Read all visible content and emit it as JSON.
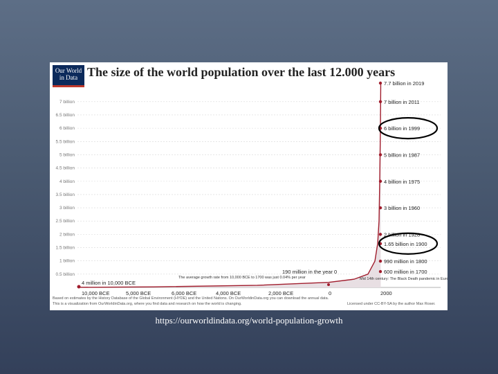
{
  "chart_data": {
    "type": "area",
    "title": "The size of the world population over the last 12.000 years",
    "logo_text": "Our World in Data",
    "y_ticks": [
      "7 billion",
      "6.5 billion",
      "6 billion",
      "5.5 billion",
      "5 billion",
      "4.5 billion",
      "4 billion",
      "3.5 billion",
      "3 billion",
      "2.5 billion",
      "2 billion",
      "1.5 billion",
      "1 billion",
      "0.5 billion"
    ],
    "x_ticks": [
      "10,000 BCE",
      "5,000 BCE",
      "6,000 BCE",
      "4,000 BCE",
      "2,000 BCE",
      "0",
      "2000"
    ],
    "ylim": [
      0,
      7.7
    ],
    "points": [
      {
        "label": "7.7 billion in 2019",
        "value": 7.7
      },
      {
        "label": "7 billion in 2011",
        "value": 7.0
      },
      {
        "label": "6 billion in 1999",
        "value": 6.0
      },
      {
        "label": "5 billion in 1987",
        "value": 5.0
      },
      {
        "label": "4 billion in 1975",
        "value": 4.0
      },
      {
        "label": "3 billion in 1960",
        "value": 3.0
      },
      {
        "label": "2 billion in 1928",
        "value": 2.0
      },
      {
        "label": "1.65 billion in 1900",
        "value": 1.65
      },
      {
        "label": "990 million in 1800",
        "value": 0.99
      },
      {
        "label": "600 million in 1700",
        "value": 0.6
      }
    ],
    "annotations": {
      "start": "4 million in 10,000 BCE",
      "year0": "190 million in the year 0",
      "growth_rate": "The average growth rate from 10,000 BCE to 1700 was just 0.04% per year",
      "black_death": "Mid 14th century: The Black Death pandemic in Europe kills 200 million people."
    },
    "highlighted": [
      "6 billion in 1999",
      "1.65 billion in 1900"
    ],
    "colors": {
      "line": "#a01c2c",
      "fill": "#e8dfe3",
      "highlight": "#000000"
    }
  },
  "footer": {
    "line1": "Based on estimates by the History Database of the Global Environment (HYDE) and the United Nations. On OurWorldinData.org you can download the annual data.",
    "line2": "This is a visualization from OurWorldinData.org, where you find data and research on how the world is changing.",
    "license": "Licensed under CC-BY-SA by the author Max Roser."
  },
  "source_url": "https://ourworldindata.org/world-population-growth"
}
